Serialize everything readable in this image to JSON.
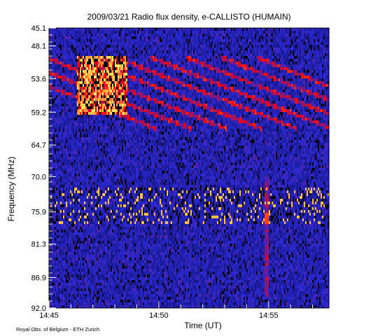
{
  "chart_data": {
    "type": "heatmap",
    "title": "2009/03/21  Radio flux density, e-CALLISTO (HUMAIN)",
    "xlabel": "Time (UT)",
    "ylabel": "Frequency (MHz)",
    "x_ticks": [
      "14:45",
      "14:50",
      "14:55"
    ],
    "x_tick_minutes": [
      0,
      5,
      10
    ],
    "xlim_minutes": [
      0,
      12.75
    ],
    "y_ticks": [
      "45.1",
      "48.1",
      "53.6",
      "59.2",
      "64.7",
      "70.0",
      "75.9",
      "81.3",
      "86.9",
      "92.0"
    ],
    "ylim": [
      45.1,
      92.0
    ],
    "colormap": [
      "#000000",
      "#10106e",
      "#2a2ad6",
      "#ff0000",
      "#ffff66"
    ],
    "features": {
      "drifting_bands_count": 9,
      "bright_burst_time_minutes": [
        1.3,
        3.6
      ],
      "bright_burst_freq_mhz": [
        50.0,
        59.5
      ],
      "vertical_interference_minutes": [
        9.8,
        10.0
      ],
      "horizontal_band_mhz": [
        72.0,
        78.0
      ]
    }
  },
  "footer": "Royal Obs. of Belgium - ETH Zurich"
}
